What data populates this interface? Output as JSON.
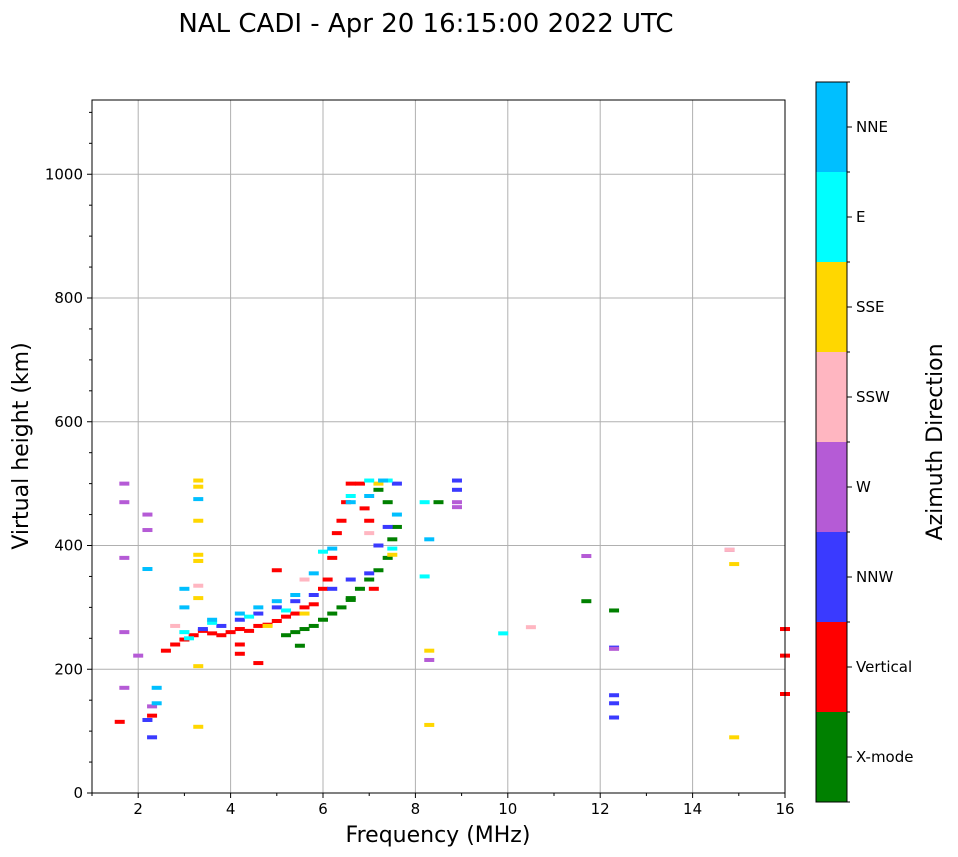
{
  "chart_data": {
    "type": "scatter",
    "title": "NAL CADI - Apr 20 16:15:00 2022 UTC",
    "xlabel": "Frequency (MHz)",
    "ylabel": "Virtual height (km)",
    "xlim": [
      1,
      16
    ],
    "ylim": [
      0,
      1120
    ],
    "xticks": [
      2,
      4,
      6,
      8,
      10,
      12,
      14,
      16
    ],
    "yticks": [
      0,
      200,
      400,
      600,
      800,
      1000
    ],
    "grid": true,
    "colorbar": {
      "label": "Azimuth Direction",
      "categories": [
        {
          "name": "X-mode",
          "color": "#008000"
        },
        {
          "name": "Vertical",
          "color": "#ff0000"
        },
        {
          "name": "NNW",
          "color": "#3a3aff"
        },
        {
          "name": "W",
          "color": "#b55bd6"
        },
        {
          "name": "SSW",
          "color": "#ffb6c1"
        },
        {
          "name": "SSE",
          "color": "#ffd700"
        },
        {
          "name": "E",
          "color": "#00ffff"
        },
        {
          "name": "NNE",
          "color": "#00bfff"
        }
      ]
    },
    "series": [
      {
        "name": "Vertical",
        "points": [
          [
            1.6,
            115
          ],
          [
            2.3,
            125
          ],
          [
            2.6,
            230
          ],
          [
            2.8,
            240
          ],
          [
            3.0,
            248
          ],
          [
            3.2,
            255
          ],
          [
            3.4,
            262
          ],
          [
            3.6,
            258
          ],
          [
            3.8,
            255
          ],
          [
            4.0,
            260
          ],
          [
            4.2,
            265
          ],
          [
            4.4,
            262
          ],
          [
            4.6,
            270
          ],
          [
            4.8,
            272
          ],
          [
            5.0,
            278
          ],
          [
            5.2,
            285
          ],
          [
            5.4,
            290
          ],
          [
            5.6,
            300
          ],
          [
            5.8,
            305
          ],
          [
            6.0,
            330
          ],
          [
            6.1,
            345
          ],
          [
            6.2,
            380
          ],
          [
            6.3,
            420
          ],
          [
            6.4,
            440
          ],
          [
            6.5,
            470
          ],
          [
            6.6,
            500
          ],
          [
            6.8,
            500
          ],
          [
            6.9,
            460
          ],
          [
            7.0,
            440
          ],
          [
            7.1,
            330
          ],
          [
            4.2,
            240
          ],
          [
            4.2,
            225
          ],
          [
            4.6,
            210
          ],
          [
            5.0,
            360
          ],
          [
            16,
            265
          ],
          [
            16,
            222
          ],
          [
            16,
            160
          ]
        ]
      },
      {
        "name": "X-mode",
        "points": [
          [
            5.2,
            255
          ],
          [
            5.4,
            260
          ],
          [
            5.6,
            265
          ],
          [
            5.8,
            270
          ],
          [
            6.0,
            280
          ],
          [
            6.2,
            290
          ],
          [
            6.4,
            300
          ],
          [
            6.6,
            315
          ],
          [
            6.8,
            330
          ],
          [
            7.0,
            345
          ],
          [
            7.2,
            360
          ],
          [
            7.4,
            380
          ],
          [
            7.5,
            410
          ],
          [
            7.6,
            430
          ],
          [
            7.4,
            470
          ],
          [
            7.2,
            490
          ],
          [
            5.5,
            238
          ],
          [
            6.6,
            312
          ],
          [
            8.5,
            470
          ],
          [
            11.7,
            310
          ],
          [
            12.3,
            295
          ]
        ]
      },
      {
        "name": "NNW",
        "points": [
          [
            3.4,
            265
          ],
          [
            3.8,
            270
          ],
          [
            4.2,
            280
          ],
          [
            4.6,
            290
          ],
          [
            5.0,
            300
          ],
          [
            5.4,
            310
          ],
          [
            5.8,
            320
          ],
          [
            6.2,
            330
          ],
          [
            6.6,
            345
          ],
          [
            7.0,
            355
          ],
          [
            7.2,
            400
          ],
          [
            7.4,
            430
          ],
          [
            7.6,
            500
          ],
          [
            8.9,
            505
          ],
          [
            8.9,
            490
          ],
          [
            12.3,
            235
          ],
          [
            12.3,
            158
          ],
          [
            12.3,
            145
          ],
          [
            12.3,
            122
          ],
          [
            2.2,
            118
          ],
          [
            2.3,
            90
          ]
        ]
      },
      {
        "name": "W",
        "points": [
          [
            1.7,
            500
          ],
          [
            1.7,
            470
          ],
          [
            1.7,
            380
          ],
          [
            1.7,
            260
          ],
          [
            1.7,
            170
          ],
          [
            2.2,
            450
          ],
          [
            2.2,
            425
          ],
          [
            2.0,
            222
          ],
          [
            2.3,
            140
          ],
          [
            8.9,
            470
          ],
          [
            8.9,
            462
          ],
          [
            8.3,
            215
          ],
          [
            11.7,
            383
          ],
          [
            12.3,
            233
          ],
          [
            14.8,
            393
          ]
        ]
      },
      {
        "name": "SSW",
        "points": [
          [
            3.3,
            335
          ],
          [
            3.0,
            260
          ],
          [
            2.8,
            270
          ],
          [
            5.6,
            345
          ],
          [
            7.0,
            420
          ],
          [
            10.5,
            268
          ],
          [
            14.8,
            393
          ]
        ]
      },
      {
        "name": "SSE",
        "points": [
          [
            3.3,
            505
          ],
          [
            3.3,
            495
          ],
          [
            3.3,
            440
          ],
          [
            3.3,
            385
          ],
          [
            3.3,
            375
          ],
          [
            3.3,
            315
          ],
          [
            3.3,
            205
          ],
          [
            3.3,
            107
          ],
          [
            4.8,
            270
          ],
          [
            5.6,
            290
          ],
          [
            7.2,
            500
          ],
          [
            7.5,
            385
          ],
          [
            8.3,
            230
          ],
          [
            8.3,
            110
          ],
          [
            14.9,
            370
          ],
          [
            14.9,
            90
          ]
        ]
      },
      {
        "name": "E",
        "points": [
          [
            3.0,
            260
          ],
          [
            3.6,
            275
          ],
          [
            4.4,
            285
          ],
          [
            5.2,
            295
          ],
          [
            6.0,
            390
          ],
          [
            6.6,
            480
          ],
          [
            7.0,
            505
          ],
          [
            7.4,
            505
          ],
          [
            7.5,
            395
          ],
          [
            8.2,
            470
          ],
          [
            8.2,
            350
          ],
          [
            9.9,
            258
          ],
          [
            3.1,
            250
          ]
        ]
      },
      {
        "name": "NNE",
        "points": [
          [
            2.4,
            170
          ],
          [
            2.2,
            362
          ],
          [
            3.0,
            330
          ],
          [
            3.0,
            300
          ],
          [
            3.3,
            475
          ],
          [
            3.6,
            280
          ],
          [
            4.2,
            290
          ],
          [
            4.6,
            300
          ],
          [
            5.0,
            310
          ],
          [
            5.4,
            320
          ],
          [
            5.8,
            355
          ],
          [
            6.2,
            395
          ],
          [
            6.6,
            470
          ],
          [
            7.0,
            480
          ],
          [
            7.3,
            505
          ],
          [
            7.6,
            450
          ],
          [
            8.3,
            410
          ],
          [
            2.4,
            145
          ]
        ]
      }
    ]
  }
}
